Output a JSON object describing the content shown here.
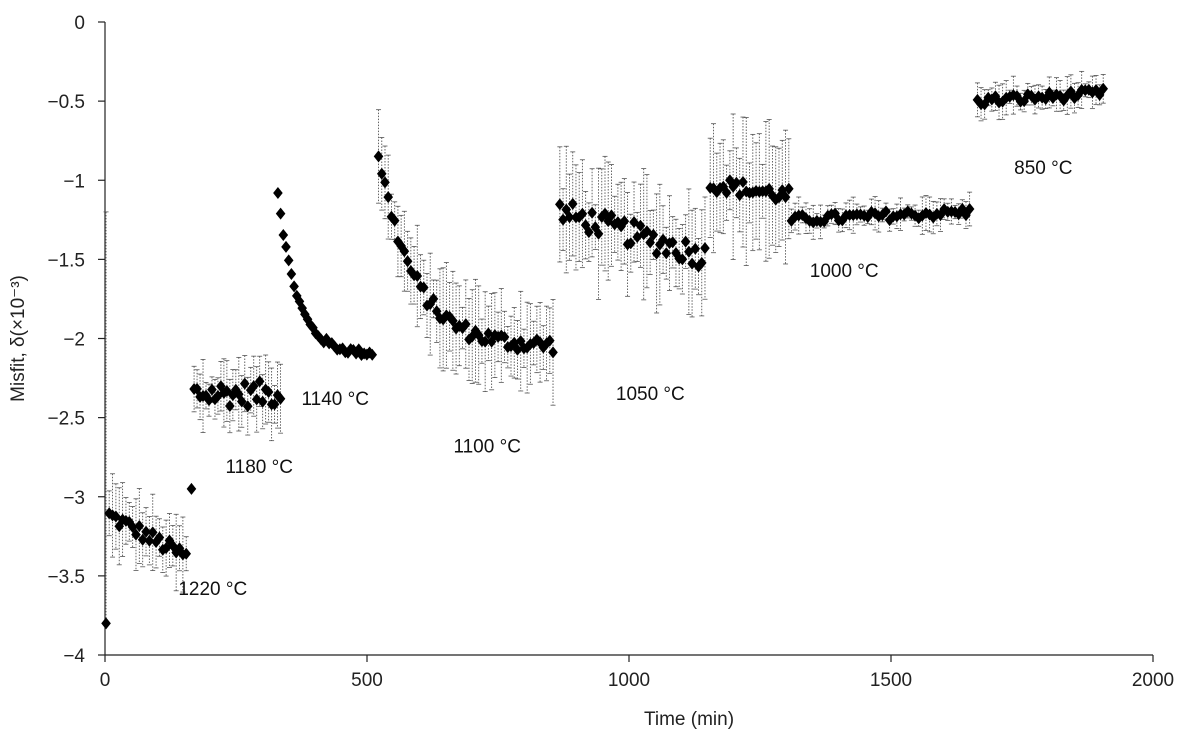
{
  "chart_data": {
    "type": "scatter",
    "xlabel": "Time (min)",
    "ylabel": "Misfit, δ(×10⁻³)",
    "xlim": [
      0,
      2000
    ],
    "ylim": [
      -4,
      0
    ],
    "x_ticks": [
      "0",
      "500",
      "1000",
      "1500",
      "2000"
    ],
    "y_ticks": [
      "0",
      "-0.5",
      "-1",
      "-1.5",
      "-2",
      "-2.5",
      "-3",
      "-3.5",
      "-4"
    ],
    "marker": "diamond",
    "marker_color": "#000000",
    "error_bar_style": "dotted",
    "annotations": [
      {
        "text": "1220 °C",
        "x": 140,
        "y": -3.62
      },
      {
        "text": "1180 °C",
        "x": 230,
        "y": -2.85
      },
      {
        "text": "1140 °C",
        "x": 375,
        "y": -2.42
      },
      {
        "text": "1100 °C",
        "x": 665,
        "y": -2.72
      },
      {
        "text": "1050 °C",
        "x": 975,
        "y": -2.39
      },
      {
        "text": "1000 °C",
        "x": 1345,
        "y": -1.61
      },
      {
        "text": "850 °C",
        "x": 1735,
        "y": -0.96
      }
    ],
    "series": [
      {
        "segments": [
          {
            "x_start": 8,
            "x_end": 155,
            "y_start": -3.12,
            "y_end": -3.38,
            "n": 24,
            "shape": "linear",
            "noise": 0.05,
            "err": 0.22
          },
          {
            "x_start": 165,
            "x_end": 165,
            "y_start": -2.95,
            "y_end": -2.95,
            "n": 1,
            "shape": "linear",
            "noise": 0,
            "err": 0.0
          },
          {
            "x_start": 170,
            "x_end": 335,
            "y_start": -2.35,
            "y_end": -2.35,
            "n": 30,
            "shape": "flat",
            "noise": 0.08,
            "err": 0.2
          },
          {
            "x_start": 330,
            "x_end": 510,
            "y_start": -1.07,
            "y_end": -2.1,
            "n": 36,
            "shape": "exp",
            "noise": 0.02,
            "err": 0.0
          },
          {
            "x_start": 522,
            "x_end": 855,
            "y_start": -0.83,
            "y_end": -2.05,
            "n": 55,
            "shape": "exp",
            "noise": 0.05,
            "err": 0.28
          },
          {
            "x_start": 868,
            "x_end": 1145,
            "y_start": -1.2,
            "y_end": -1.48,
            "n": 46,
            "shape": "linear",
            "noise": 0.08,
            "err": 0.35
          },
          {
            "x_start": 1155,
            "x_end": 1305,
            "y_start": -1.02,
            "y_end": -1.1,
            "n": 25,
            "shape": "linear",
            "noise": 0.05,
            "err": 0.4
          },
          {
            "x_start": 1310,
            "x_end": 1650,
            "y_start": -1.25,
            "y_end": -1.2,
            "n": 50,
            "shape": "linear",
            "noise": 0.03,
            "err": 0.1
          },
          {
            "x_start": 1665,
            "x_end": 1905,
            "y_start": -0.5,
            "y_end": -0.45,
            "n": 36,
            "shape": "linear",
            "noise": 0.03,
            "err": 0.1
          }
        ],
        "extra_points": [
          {
            "x": 2,
            "y": -3.8,
            "err_top": -1.2
          }
        ]
      }
    ]
  }
}
